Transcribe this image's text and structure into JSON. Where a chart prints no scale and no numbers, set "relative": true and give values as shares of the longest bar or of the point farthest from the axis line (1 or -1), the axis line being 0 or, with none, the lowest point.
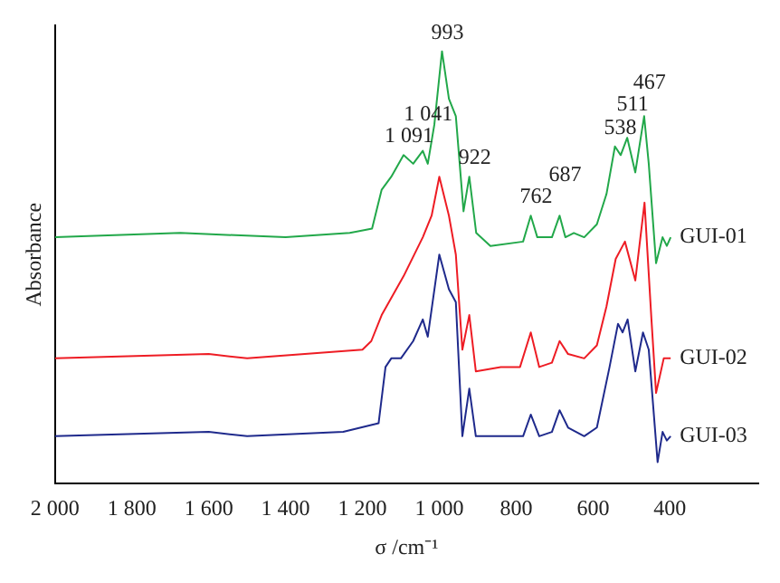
{
  "chart_data": {
    "type": "line",
    "relative": true,
    "xlabel": "σ /cm⁻¹",
    "ylabel": "Absorbance",
    "xlim": [
      2000,
      170
    ],
    "xticks": [
      {
        "value": 2000,
        "label": "2 000"
      },
      {
        "value": 1800,
        "label": "1 800"
      },
      {
        "value": 1600,
        "label": "1 600"
      },
      {
        "value": 1400,
        "label": "1 400"
      },
      {
        "value": 1200,
        "label": "1 200"
      },
      {
        "value": 1000,
        "label": "1 000"
      },
      800,
      600,
      400
    ],
    "grid": false,
    "legend": false,
    "marker": "none",
    "line_style": "solid",
    "series": [
      {
        "name": "GUI-01",
        "color": "#22a84a",
        "x": [
          2000,
          1674,
          1400,
          1233,
          1175,
          1150,
          1125,
          1093,
          1068,
          1043,
          1030,
          1013,
          993,
          975,
          957,
          937,
          922,
          904,
          867,
          782,
          762,
          745,
          707,
          687,
          672,
          650,
          623,
          590,
          565,
          543,
          528,
          511,
          490,
          467,
          455,
          436,
          419,
          408,
          398
        ],
        "values": [
          0.57,
          0.58,
          0.57,
          0.58,
          0.59,
          0.68,
          0.71,
          0.76,
          0.74,
          0.77,
          0.74,
          0.83,
          1.0,
          0.89,
          0.85,
          0.63,
          0.71,
          0.58,
          0.55,
          0.56,
          0.62,
          0.57,
          0.57,
          0.62,
          0.57,
          0.58,
          0.57,
          0.6,
          0.67,
          0.78,
          0.76,
          0.8,
          0.72,
          0.85,
          0.74,
          0.51,
          0.57,
          0.55,
          0.57
        ]
      },
      {
        "name": "GUI-02",
        "color": "#ee1c24",
        "x": [
          2000,
          1600,
          1500,
          1200,
          1177,
          1150,
          1093,
          1043,
          1020,
          1000,
          975,
          957,
          940,
          922,
          905,
          840,
          790,
          762,
          740,
          707,
          687,
          665,
          623,
          590,
          565,
          541,
          517,
          490,
          466,
          448,
          436,
          416,
          398
        ],
        "values": [
          0.29,
          0.3,
          0.29,
          0.31,
          0.33,
          0.39,
          0.48,
          0.57,
          0.62,
          0.71,
          0.62,
          0.53,
          0.31,
          0.39,
          0.26,
          0.27,
          0.27,
          0.35,
          0.27,
          0.28,
          0.33,
          0.3,
          0.29,
          0.32,
          0.41,
          0.52,
          0.56,
          0.47,
          0.65,
          0.38,
          0.21,
          0.29,
          0.29
        ]
      },
      {
        "name": "GUI-03",
        "color": "#1f2a8c",
        "x": [
          2000,
          1600,
          1500,
          1250,
          1158,
          1140,
          1125,
          1100,
          1068,
          1043,
          1030,
          1000,
          975,
          957,
          940,
          922,
          905,
          807,
          782,
          762,
          740,
          707,
          687,
          665,
          623,
          590,
          557,
          535,
          523,
          510,
          490,
          470,
          455,
          432,
          419,
          408,
          398
        ],
        "values": [
          0.11,
          0.12,
          0.11,
          0.12,
          0.14,
          0.27,
          0.29,
          0.29,
          0.33,
          0.38,
          0.34,
          0.53,
          0.45,
          0.42,
          0.11,
          0.22,
          0.11,
          0.11,
          0.11,
          0.16,
          0.11,
          0.12,
          0.17,
          0.13,
          0.11,
          0.13,
          0.27,
          0.37,
          0.35,
          0.38,
          0.26,
          0.35,
          0.31,
          0.05,
          0.12,
          0.1,
          0.11
        ]
      }
    ],
    "annotations": [
      {
        "text": "1 091",
        "x": 1093,
        "y": 0.76
      },
      {
        "text": "1 041",
        "x": 1043,
        "y": 0.77
      },
      {
        "text": "993",
        "x": 993,
        "y": 1.0
      },
      {
        "text": "922",
        "x": 922,
        "y": 0.71
      },
      {
        "text": "762",
        "x": 762,
        "y": 0.62
      },
      {
        "text": "687",
        "x": 687,
        "y": 0.62
      },
      {
        "text": "538",
        "x": 543,
        "y": 0.78
      },
      {
        "text": "511",
        "x": 511,
        "y": 0.8
      },
      {
        "text": "467",
        "x": 467,
        "y": 0.85
      }
    ]
  }
}
